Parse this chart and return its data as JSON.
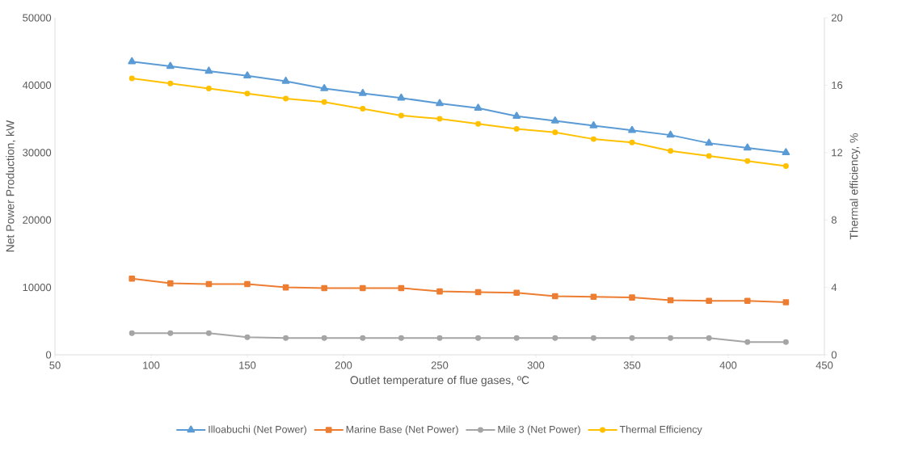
{
  "chart_data": {
    "type": "line",
    "xlabel": "Outlet temperature of flue gases, ºC",
    "ylabel": "Net Power Production, kW",
    "y2label": "Thermal efficiency, %",
    "x": [
      90,
      110,
      130,
      150,
      170,
      190,
      210,
      230,
      250,
      270,
      290,
      310,
      330,
      350,
      370,
      390,
      410,
      430
    ],
    "xlim": [
      50,
      450
    ],
    "xticks": [
      50,
      100,
      150,
      200,
      250,
      300,
      350,
      400,
      450
    ],
    "ylim": [
      0,
      50000
    ],
    "yticks": [
      0,
      10000,
      20000,
      30000,
      40000,
      50000
    ],
    "y2lim": [
      0,
      20
    ],
    "y2ticks": [
      0,
      4,
      8,
      12,
      16,
      20
    ],
    "grid": false,
    "legend": "bottom",
    "line_style": "solid",
    "series": [
      {
        "name": "Illoabuchi (Net Power)",
        "color": "#5b9bd5",
        "marker": "triangle",
        "values": [
          43500,
          42800,
          42100,
          41400,
          40600,
          39500,
          38800,
          38100,
          37300,
          36600,
          35400,
          34700,
          34000,
          33300,
          32600,
          31400,
          30700,
          30000
        ]
      },
      {
        "name": "Marine Base (Net Power)",
        "color": "#ed7d31",
        "marker": "square",
        "values": [
          11300,
          10600,
          10500,
          10500,
          10000,
          9900,
          9900,
          9900,
          9400,
          9300,
          9200,
          8700,
          8600,
          8500,
          8100,
          8000,
          8000,
          7800
        ]
      },
      {
        "name": "Mile 3 (Net Power)",
        "color": "#a5a5a5",
        "marker": "circle",
        "values": [
          3200,
          3200,
          3200,
          2600,
          2500,
          2500,
          2500,
          2500,
          2500,
          2500,
          2500,
          2500,
          2500,
          2500,
          2500,
          2500,
          1900,
          1900
        ]
      },
      {
        "name": "Thermal Efficiency",
        "color": "#ffc000",
        "marker": "circle",
        "axis": "y2",
        "values": [
          16.4,
          16.1,
          15.8,
          15.5,
          15.2,
          15.0,
          14.6,
          14.2,
          14.0,
          13.7,
          13.4,
          13.2,
          12.8,
          12.6,
          12.1,
          11.8,
          11.5,
          11.2
        ]
      }
    ]
  }
}
